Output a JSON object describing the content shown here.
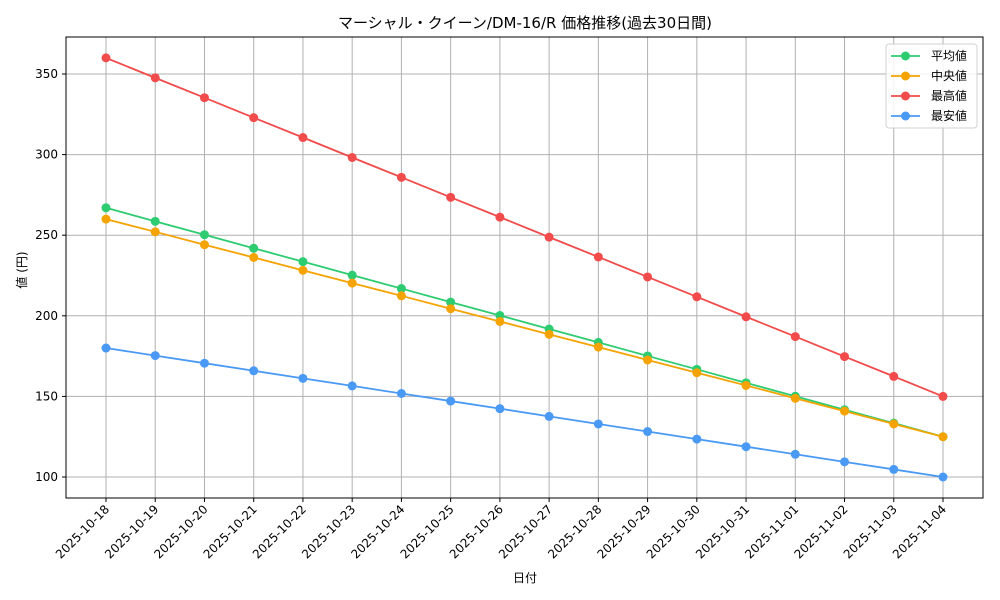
{
  "chart_data": {
    "type": "line",
    "title": "マーシャル・クイーン/DM-16/R 価格推移(過去30日間)",
    "xlabel": "日付",
    "ylabel": "値 (円)",
    "x": [
      "2025-10-18",
      "2025-10-19",
      "2025-10-20",
      "2025-10-21",
      "2025-10-22",
      "2025-10-23",
      "2025-10-24",
      "2025-10-25",
      "2025-10-26",
      "2025-10-27",
      "2025-10-28",
      "2025-10-29",
      "2025-10-30",
      "2025-10-31",
      "2025-11-01",
      "2025-11-02",
      "2025-11-03",
      "2025-11-04"
    ],
    "yticks": [
      100,
      150,
      200,
      250,
      300,
      350
    ],
    "ylim": [
      87,
      372
    ],
    "grid": true,
    "legend_position": "upper right",
    "series": [
      {
        "name": "平均値",
        "color": "#2ecc71",
        "values": [
          267,
          258.6,
          250.3,
          241.9,
          233.6,
          225.2,
          216.9,
          208.5,
          200.2,
          191.8,
          183.5,
          175.1,
          166.8,
          158.4,
          150.1,
          141.7,
          133.4,
          125
        ]
      },
      {
        "name": "中央値",
        "color": "#f5a300",
        "values": [
          260,
          252.1,
          244.1,
          236.2,
          228.2,
          220.3,
          212.4,
          204.4,
          196.5,
          188.5,
          180.6,
          172.6,
          164.7,
          156.8,
          148.8,
          140.9,
          132.9,
          125
        ]
      },
      {
        "name": "最高値",
        "color": "#f24b4b",
        "values": [
          360,
          347.6,
          335.3,
          322.9,
          310.6,
          298.2,
          285.9,
          273.5,
          261.2,
          248.8,
          236.5,
          224.1,
          211.8,
          199.4,
          187.1,
          174.7,
          162.4,
          150
        ]
      },
      {
        "name": "最安値",
        "color": "#4a9af5",
        "values": [
          180,
          175.3,
          170.6,
          165.9,
          161.2,
          156.5,
          151.8,
          147.1,
          142.4,
          137.6,
          132.9,
          128.2,
          123.5,
          118.8,
          114.1,
          109.4,
          104.7,
          100
        ]
      }
    ]
  }
}
